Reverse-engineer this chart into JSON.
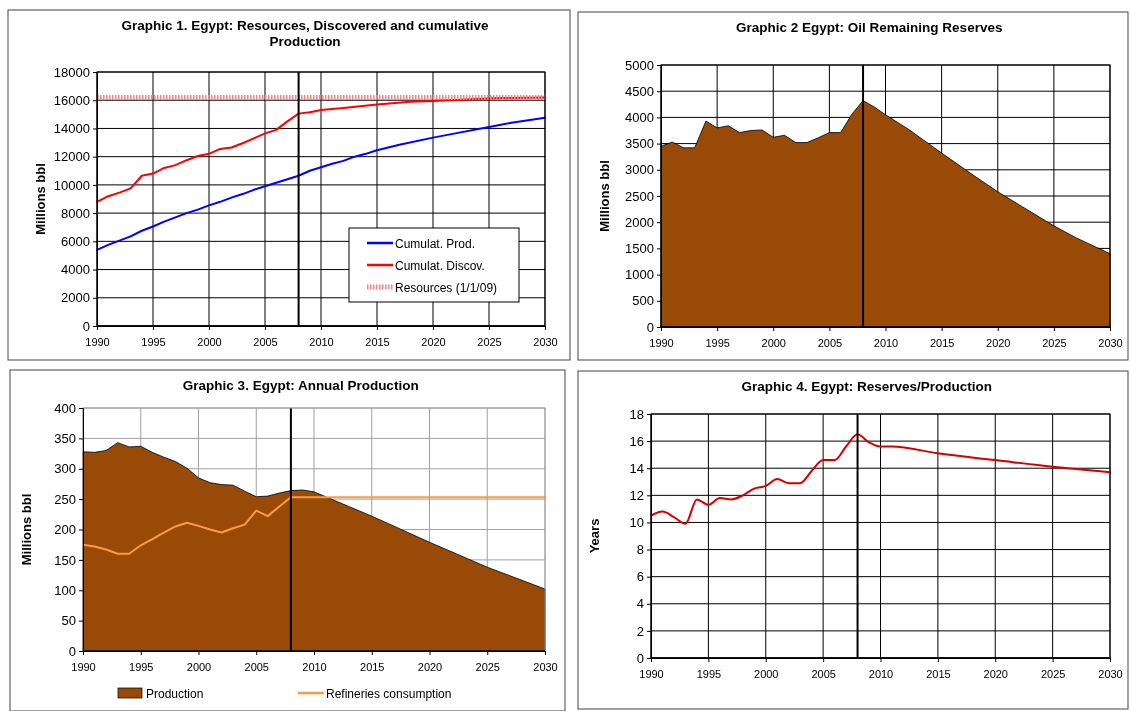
{
  "chart_data": [
    {
      "type": "line",
      "title": "Graphic 1. Egypt: Resources, Discovered and cumulative Production",
      "ylabel": "Millions bbl",
      "xlim": [
        1990,
        2030
      ],
      "xticks": [
        1990,
        1995,
        2000,
        2005,
        2010,
        2015,
        2020,
        2025,
        2030
      ],
      "ylim": [
        0,
        18000
      ],
      "yticks": [
        0,
        2000,
        4000,
        6000,
        8000,
        10000,
        12000,
        14000,
        16000,
        18000
      ],
      "grid": true,
      "legend": "bottom right",
      "ref_lines": [
        {
          "axis": "x",
          "value": 2008,
          "color": "#000000"
        }
      ],
      "series": [
        {
          "name": "Cumulat. Prod.",
          "color": "#0000ff",
          "x": [
            1990,
            1991,
            1992,
            1993,
            1994,
            1995,
            1996,
            1997,
            1998,
            1999,
            2000,
            2001,
            2002,
            2003,
            2004,
            2005,
            2006,
            2007,
            2008,
            2009,
            2010,
            2011,
            2012,
            2013,
            2014,
            2015,
            2017,
            2020,
            2022,
            2025,
            2027,
            2030
          ],
          "values": [
            5400,
            5750,
            6050,
            6350,
            6750,
            7050,
            7400,
            7700,
            8000,
            8250,
            8550,
            8800,
            9100,
            9350,
            9650,
            9900,
            10150,
            10400,
            10650,
            11000,
            11250,
            11500,
            11700,
            12000,
            12200,
            12450,
            12850,
            13350,
            13650,
            14100,
            14400,
            14750
          ]
        },
        {
          "name": "Cumulat. Discov.",
          "color": "#ff0000",
          "x": [
            1990,
            1991,
            1992,
            1993,
            1994,
            1995,
            1996,
            1997,
            1998,
            1999,
            2000,
            2001,
            2002,
            2003,
            2004,
            2005,
            2006,
            2007,
            2008,
            2009,
            2010,
            2012,
            2015,
            2018,
            2020,
            2023,
            2026,
            2030
          ],
          "values": [
            8800,
            9200,
            9450,
            9750,
            10650,
            10800,
            11200,
            11400,
            11750,
            12050,
            12200,
            12550,
            12650,
            12950,
            13300,
            13650,
            13900,
            14500,
            15050,
            15150,
            15300,
            15450,
            15700,
            15900,
            15950,
            16050,
            16150,
            16200
          ]
        },
        {
          "name": "Resources (1/1/09)",
          "color": "#ff8080",
          "line_style": "dotted",
          "x": [
            1990,
            2030
          ],
          "values": [
            16200,
            16200
          ]
        }
      ]
    },
    {
      "type": "area",
      "title": "Graphic 2 Egypt: Oil Remaining Reserves",
      "ylabel": "Millions bbl",
      "xlim": [
        1990,
        2030
      ],
      "xticks": [
        1990,
        1995,
        2000,
        2005,
        2010,
        2015,
        2020,
        2025,
        2030
      ],
      "ylim": [
        0,
        5000
      ],
      "yticks": [
        0,
        500,
        1000,
        1500,
        2000,
        2500,
        3000,
        3500,
        4000,
        4500,
        5000
      ],
      "grid": true,
      "ref_lines": [
        {
          "axis": "x",
          "value": 2008,
          "color": "#000000"
        }
      ],
      "series": [
        {
          "color": "#994a07",
          "x": [
            1990,
            1991,
            1992,
            1993,
            1994,
            1995,
            1996,
            1997,
            1998,
            1999,
            2000,
            2001,
            2002,
            2003,
            2004,
            2005,
            2006,
            2007,
            2008,
            2009,
            2010,
            2012,
            2015,
            2018,
            2020,
            2022,
            2025,
            2027,
            2030
          ],
          "values": [
            3450,
            3530,
            3420,
            3420,
            3930,
            3800,
            3840,
            3710,
            3750,
            3760,
            3620,
            3660,
            3520,
            3520,
            3610,
            3710,
            3710,
            4060,
            4320,
            4200,
            4050,
            3780,
            3320,
            2870,
            2580,
            2320,
            1930,
            1700,
            1400
          ]
        }
      ]
    },
    {
      "type": "area",
      "title": "Graphic 3. Egypt: Annual Production",
      "ylabel": "Millions bbl",
      "xlim": [
        1990,
        2030
      ],
      "xticks": [
        1990,
        1995,
        2000,
        2005,
        2010,
        2015,
        2020,
        2025,
        2030
      ],
      "ylim": [
        0,
        400
      ],
      "yticks": [
        0,
        50,
        100,
        150,
        200,
        250,
        300,
        350,
        400
      ],
      "grid": true,
      "legend": "bottom",
      "ref_lines": [
        {
          "axis": "x",
          "value": 2008,
          "color": "#000000"
        }
      ],
      "series": [
        {
          "name": "Production",
          "color": "#994a07",
          "x": [
            1990,
            1991,
            1992,
            1993,
            1994,
            1995,
            1996,
            1997,
            1998,
            1999,
            2000,
            2001,
            2002,
            2003,
            2004,
            2005,
            2006,
            2007,
            2008,
            2009,
            2010,
            2011,
            2015,
            2020,
            2025,
            2030
          ],
          "values": [
            328,
            327,
            330,
            343,
            336,
            337,
            327,
            319,
            312,
            301,
            285,
            277,
            274,
            273,
            263,
            254,
            255,
            260,
            264,
            265,
            262,
            254,
            222,
            179,
            138,
            102
          ]
        },
        {
          "name": "Refineries consumption",
          "type": "line",
          "color": "#ff9a40",
          "x": [
            1990,
            1991,
            1992,
            1993,
            1994,
            1995,
            1996,
            1997,
            1998,
            1999,
            2000,
            2001,
            2002,
            2003,
            2004,
            2005,
            2006,
            2007,
            2008,
            2030
          ],
          "values": [
            175,
            172,
            167,
            160,
            160,
            174,
            184,
            195,
            205,
            211,
            206,
            200,
            195,
            202,
            208,
            231,
            222,
            238,
            253,
            253
          ]
        }
      ]
    },
    {
      "type": "line",
      "title": "Graphic 4. Egypt: Reserves/Production",
      "ylabel": "Years",
      "xlim": [
        1990,
        2030
      ],
      "xticks": [
        1990,
        1995,
        2000,
        2005,
        2010,
        2015,
        2020,
        2025,
        2030
      ],
      "ylim": [
        0,
        18
      ],
      "yticks": [
        0,
        2,
        4,
        6,
        8,
        10,
        12,
        14,
        16,
        18
      ],
      "grid": true,
      "ref_lines": [
        {
          "axis": "x",
          "value": 2008,
          "color": "#000000"
        }
      ],
      "series": [
        {
          "color": "#d40000",
          "x": [
            1990,
            1991,
            1992,
            1993,
            1994,
            1995,
            1996,
            1997,
            1998,
            1999,
            2000,
            2001,
            2002,
            2003,
            2004,
            2005,
            2006,
            2007,
            2008,
            2009,
            2010,
            2011,
            2015,
            2020,
            2025,
            2030
          ],
          "values": [
            10.5,
            10.8,
            10.4,
            9.9,
            11.7,
            11.3,
            11.8,
            11.7,
            12.0,
            12.5,
            12.7,
            13.2,
            12.9,
            12.9,
            13.8,
            14.6,
            14.6,
            15.6,
            16.5,
            15.9,
            15.6,
            15.6,
            15.1,
            14.6,
            14.1,
            13.7
          ]
        }
      ]
    }
  ]
}
